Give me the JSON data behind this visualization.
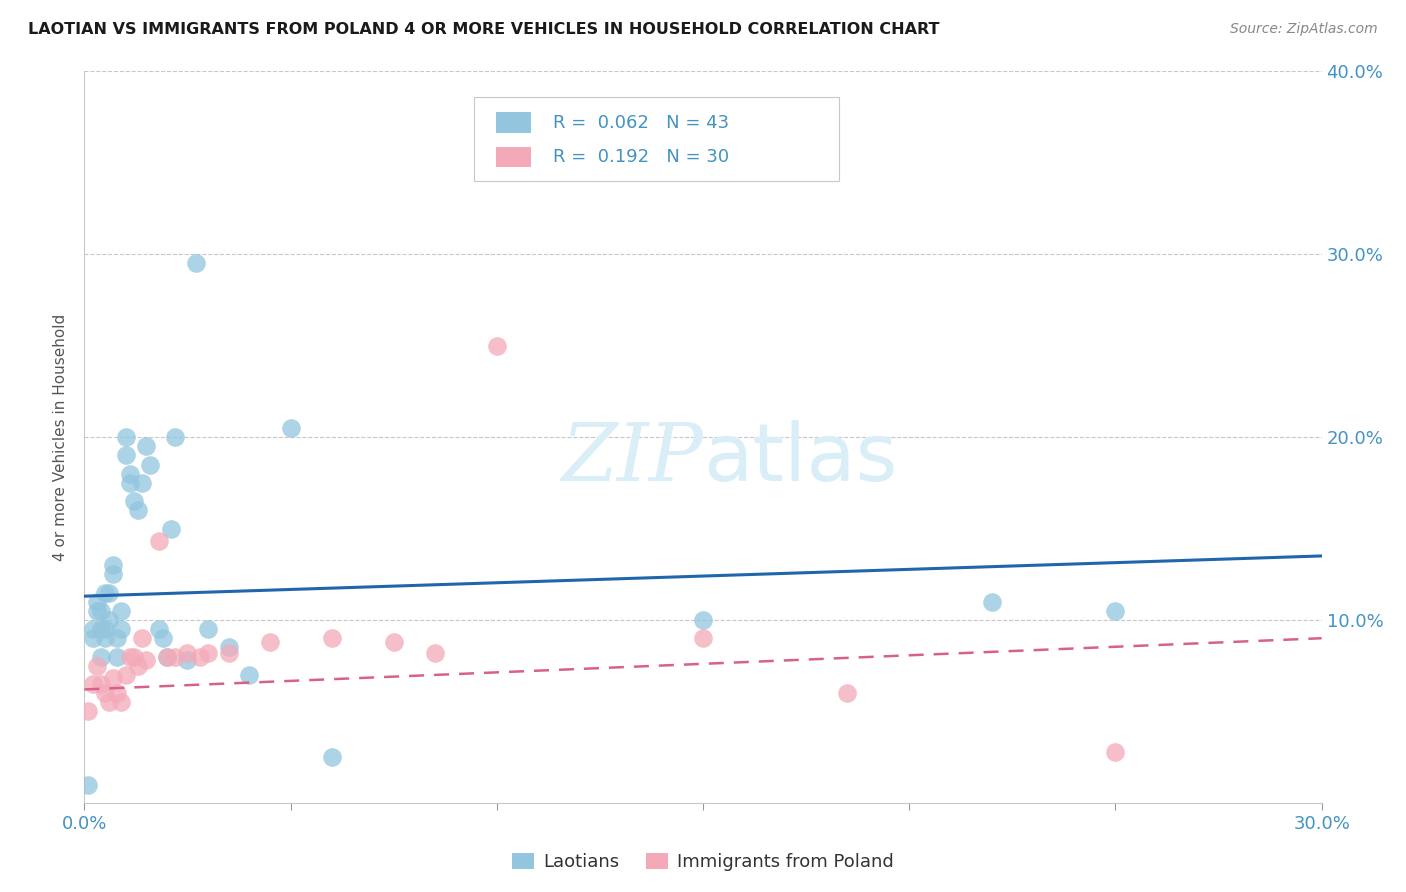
{
  "title": "LAOTIAN VS IMMIGRANTS FROM POLAND 4 OR MORE VEHICLES IN HOUSEHOLD CORRELATION CHART",
  "source": "Source: ZipAtlas.com",
  "ylabel": "4 or more Vehicles in Household",
  "xmin": 0.0,
  "xmax": 0.3,
  "ymin": 0.0,
  "ymax": 0.4,
  "legend_label1": "Laotians",
  "legend_label2": "Immigrants from Poland",
  "r1": "0.062",
  "n1": "43",
  "r2": "0.192",
  "n2": "30",
  "color_blue": "#92c5de",
  "color_pink": "#f4a9b8",
  "color_blue_line": "#2166ac",
  "color_pink_line": "#d6618a",
  "color_text_blue": "#4393c3",
  "watermark_color": "#daeef8",
  "laotian_x": [
    0.001,
    0.002,
    0.002,
    0.003,
    0.003,
    0.004,
    0.004,
    0.004,
    0.005,
    0.005,
    0.005,
    0.006,
    0.006,
    0.007,
    0.007,
    0.008,
    0.008,
    0.009,
    0.009,
    0.01,
    0.01,
    0.011,
    0.011,
    0.012,
    0.013,
    0.014,
    0.015,
    0.016,
    0.018,
    0.019,
    0.02,
    0.021,
    0.022,
    0.025,
    0.027,
    0.03,
    0.035,
    0.04,
    0.05,
    0.06,
    0.15,
    0.22,
    0.25
  ],
  "laotian_y": [
    0.01,
    0.095,
    0.09,
    0.105,
    0.11,
    0.095,
    0.105,
    0.08,
    0.09,
    0.095,
    0.115,
    0.1,
    0.115,
    0.125,
    0.13,
    0.09,
    0.08,
    0.105,
    0.095,
    0.19,
    0.2,
    0.18,
    0.175,
    0.165,
    0.16,
    0.175,
    0.195,
    0.185,
    0.095,
    0.09,
    0.08,
    0.15,
    0.2,
    0.078,
    0.295,
    0.095,
    0.085,
    0.07,
    0.205,
    0.025,
    0.1,
    0.11,
    0.105
  ],
  "poland_x": [
    0.001,
    0.002,
    0.003,
    0.004,
    0.005,
    0.006,
    0.007,
    0.008,
    0.009,
    0.01,
    0.011,
    0.012,
    0.013,
    0.014,
    0.015,
    0.018,
    0.02,
    0.022,
    0.025,
    0.028,
    0.03,
    0.035,
    0.045,
    0.06,
    0.075,
    0.085,
    0.1,
    0.15,
    0.185,
    0.25
  ],
  "poland_y": [
    0.05,
    0.065,
    0.075,
    0.065,
    0.06,
    0.055,
    0.068,
    0.06,
    0.055,
    0.07,
    0.08,
    0.08,
    0.075,
    0.09,
    0.078,
    0.143,
    0.08,
    0.08,
    0.082,
    0.08,
    0.082,
    0.082,
    0.088,
    0.09,
    0.088,
    0.082,
    0.25,
    0.09,
    0.06,
    0.028
  ]
}
